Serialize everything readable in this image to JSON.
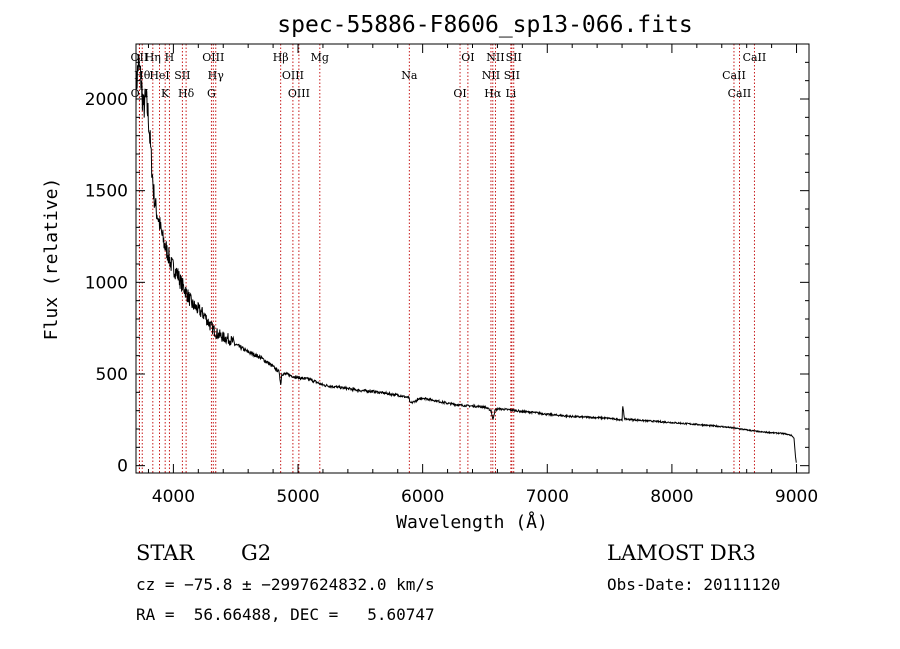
{
  "chart_data": {
    "type": "line",
    "title": "spec-55886-F8606_sp13-066.fits",
    "xlabel": "Wavelength (Å)",
    "ylabel": "Flux (relative)",
    "xlim": [
      3700,
      9100
    ],
    "ylim": [
      -40,
      2300
    ],
    "xticks": [
      4000,
      5000,
      6000,
      7000,
      8000,
      9000
    ],
    "yticks": [
      0,
      500,
      1000,
      1500,
      2000
    ],
    "series": [
      {
        "name": "spectrum",
        "x": [
          3700,
          3720,
          3740,
          3760,
          3780,
          3800,
          3820,
          3840,
          3860,
          3880,
          3900,
          3930,
          3960,
          3980,
          4000,
          4030,
          4060,
          4100,
          4150,
          4200,
          4250,
          4300,
          4350,
          4400,
          4450,
          4500,
          4600,
          4700,
          4800,
          4850,
          4861,
          4870,
          4900,
          5000,
          5100,
          5200,
          5300,
          5400,
          5500,
          5600,
          5700,
          5800,
          5890,
          5900,
          6000,
          6100,
          6200,
          6300,
          6400,
          6500,
          6550,
          6563,
          6580,
          6600,
          6700,
          6800,
          6900,
          7000,
          7200,
          7400,
          7500,
          7600,
          7605,
          7620,
          7700,
          7800,
          8000,
          8200,
          8400,
          8500,
          8600,
          8700,
          8800,
          8900,
          8960,
          8980,
          8990,
          9000
        ],
        "y": [
          2050,
          2200,
          2100,
          1950,
          2000,
          1900,
          1700,
          1500,
          1400,
          1350,
          1280,
          1200,
          1150,
          1100,
          1080,
          1050,
          1000,
          950,
          880,
          850,
          820,
          760,
          720,
          700,
          690,
          660,
          620,
          590,
          540,
          510,
          440,
          500,
          500,
          480,
          470,
          440,
          430,
          420,
          410,
          405,
          395,
          385,
          370,
          340,
          370,
          355,
          340,
          330,
          325,
          320,
          300,
          250,
          300,
          310,
          305,
          295,
          290,
          280,
          268,
          262,
          258,
          250,
          325,
          255,
          250,
          245,
          235,
          225,
          213,
          205,
          195,
          185,
          180,
          175,
          165,
          150,
          60,
          5
        ]
      }
    ],
    "lines": [
      {
        "label": "OII",
        "wl": 3727
      },
      {
        "label": "Hθ",
        "wl": 3750
      },
      {
        "label": "OII",
        "wl": 3728
      },
      {
        "label": "Hη",
        "wl": 3835
      },
      {
        "label": "HeI",
        "wl": 3889
      },
      {
        "label": "K",
        "wl": 3934
      },
      {
        "label": "H",
        "wl": 3968
      },
      {
        "label": "SII",
        "wl": 4072
      },
      {
        "label": "Hδ",
        "wl": 4102
      },
      {
        "label": "OIII",
        "wl": 4320
      },
      {
        "label": "Hγ",
        "wl": 4340
      },
      {
        "label": "G",
        "wl": 4305
      },
      {
        "label": "Hβ",
        "wl": 4861
      },
      {
        "label": "OIII",
        "wl": 4959
      },
      {
        "label": "OIII",
        "wl": 5007
      },
      {
        "label": "Mg",
        "wl": 5175
      },
      {
        "label": "Na",
        "wl": 5893
      },
      {
        "label": "OI",
        "wl": 6300
      },
      {
        "label": "OI",
        "wl": 6363
      },
      {
        "label": "NII",
        "wl": 6548
      },
      {
        "label": "Hα",
        "wl": 6563
      },
      {
        "label": "NII",
        "wl": 6584
      },
      {
        "label": "SII",
        "wl": 6716
      },
      {
        "label": "Li",
        "wl": 6708
      },
      {
        "label": "SII",
        "wl": 6731
      },
      {
        "label": "CaII",
        "wl": 8498
      },
      {
        "label": "CaII",
        "wl": 8542
      },
      {
        "label": "CaII",
        "wl": 8662
      }
    ],
    "info": {
      "class": "STAR",
      "subclass": "G2",
      "survey": "LAMOST DR3",
      "cz": "cz = −75.8 ± −2997624832.0 km/s",
      "obsdate": "Obs-Date: 20111120",
      "coords": "RA =  56.66488, DEC =   5.60747"
    },
    "colors": {
      "line": "#000000",
      "marker": "#c00000",
      "axis": "#000000"
    }
  }
}
